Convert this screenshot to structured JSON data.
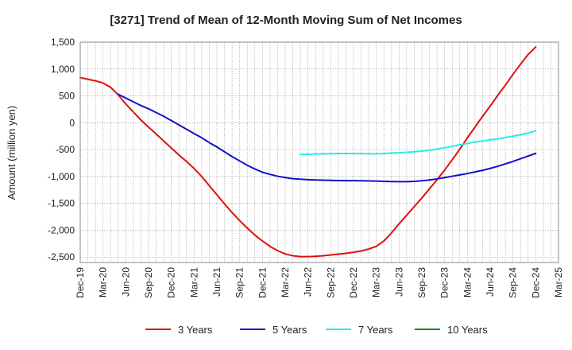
{
  "chart_data": {
    "type": "line",
    "title": "[3271]  Trend of Mean of 12-Month Moving Sum of Net Incomes",
    "ylabel": "Amount (million yen)",
    "xlabel": "",
    "ylim": [
      -2600,
      1500
    ],
    "yticks": [
      1500,
      1000,
      500,
      0,
      -500,
      -1000,
      -1500,
      -2000,
      -2500
    ],
    "ytick_labels": [
      "1,500",
      "1,000",
      "500",
      "0",
      "-500",
      "-1,000",
      "-1,500",
      "-2,000",
      "-2,500"
    ],
    "x_range": [
      "2019-12",
      "2025-03"
    ],
    "xtick_labels": [
      "Dec-19",
      "Mar-20",
      "Jun-20",
      "Sep-20",
      "Dec-20",
      "Mar-21",
      "Jun-21",
      "Sep-21",
      "Dec-21",
      "Mar-22",
      "Jun-22",
      "Sep-22",
      "Dec-22",
      "Mar-23",
      "Jun-23",
      "Sep-23",
      "Dec-23",
      "Mar-24",
      "Jun-24",
      "Sep-24",
      "Dec-24",
      "Mar-25"
    ],
    "grid": true,
    "legend_position": "bottom",
    "series": [
      {
        "name": "3 Years",
        "color": "#dd1111",
        "points": [
          [
            "2019-12",
            840
          ],
          [
            "2020-01",
            810
          ],
          [
            "2020-02",
            780
          ],
          [
            "2020-03",
            740
          ],
          [
            "2020-04",
            660
          ],
          [
            "2020-05",
            520
          ],
          [
            "2020-06",
            350
          ],
          [
            "2020-07",
            200
          ],
          [
            "2020-08",
            50
          ],
          [
            "2020-09",
            -80
          ],
          [
            "2020-10",
            -210
          ],
          [
            "2020-11",
            -340
          ],
          [
            "2020-12",
            -470
          ],
          [
            "2021-01",
            -600
          ],
          [
            "2021-02",
            -720
          ],
          [
            "2021-03",
            -850
          ],
          [
            "2021-04",
            -1000
          ],
          [
            "2021-05",
            -1170
          ],
          [
            "2021-06",
            -1340
          ],
          [
            "2021-07",
            -1510
          ],
          [
            "2021-08",
            -1670
          ],
          [
            "2021-09",
            -1820
          ],
          [
            "2021-10",
            -1960
          ],
          [
            "2021-11",
            -2090
          ],
          [
            "2021-12",
            -2200
          ],
          [
            "2022-01",
            -2300
          ],
          [
            "2022-02",
            -2380
          ],
          [
            "2022-03",
            -2440
          ],
          [
            "2022-04",
            -2475
          ],
          [
            "2022-05",
            -2490
          ],
          [
            "2022-06",
            -2490
          ],
          [
            "2022-07",
            -2485
          ],
          [
            "2022-08",
            -2475
          ],
          [
            "2022-09",
            -2460
          ],
          [
            "2022-10",
            -2445
          ],
          [
            "2022-11",
            -2430
          ],
          [
            "2022-12",
            -2410
          ],
          [
            "2023-01",
            -2385
          ],
          [
            "2023-02",
            -2350
          ],
          [
            "2023-03",
            -2300
          ],
          [
            "2023-04",
            -2200
          ],
          [
            "2023-05",
            -2050
          ],
          [
            "2023-06",
            -1880
          ],
          [
            "2023-07",
            -1720
          ],
          [
            "2023-08",
            -1560
          ],
          [
            "2023-09",
            -1400
          ],
          [
            "2023-10",
            -1230
          ],
          [
            "2023-11",
            -1060
          ],
          [
            "2023-12",
            -880
          ],
          [
            "2024-01",
            -690
          ],
          [
            "2024-02",
            -490
          ],
          [
            "2024-03",
            -280
          ],
          [
            "2024-04",
            -80
          ],
          [
            "2024-05",
            120
          ],
          [
            "2024-06",
            310
          ],
          [
            "2024-07",
            510
          ],
          [
            "2024-08",
            700
          ],
          [
            "2024-09",
            900
          ],
          [
            "2024-10",
            1090
          ],
          [
            "2024-11",
            1270
          ],
          [
            "2024-12",
            1410
          ]
        ]
      },
      {
        "name": "5 Years",
        "color": "#1111cc",
        "points": [
          [
            "2020-05",
            530
          ],
          [
            "2020-06",
            460
          ],
          [
            "2020-07",
            390
          ],
          [
            "2020-08",
            320
          ],
          [
            "2020-09",
            260
          ],
          [
            "2020-10",
            190
          ],
          [
            "2020-11",
            120
          ],
          [
            "2020-12",
            40
          ],
          [
            "2021-01",
            -40
          ],
          [
            "2021-02",
            -120
          ],
          [
            "2021-03",
            -200
          ],
          [
            "2021-04",
            -280
          ],
          [
            "2021-05",
            -370
          ],
          [
            "2021-06",
            -450
          ],
          [
            "2021-07",
            -540
          ],
          [
            "2021-08",
            -630
          ],
          [
            "2021-09",
            -710
          ],
          [
            "2021-10",
            -790
          ],
          [
            "2021-11",
            -860
          ],
          [
            "2021-12",
            -920
          ],
          [
            "2022-01",
            -960
          ],
          [
            "2022-02",
            -995
          ],
          [
            "2022-03",
            -1020
          ],
          [
            "2022-04",
            -1040
          ],
          [
            "2022-05",
            -1050
          ],
          [
            "2022-06",
            -1058
          ],
          [
            "2022-07",
            -1064
          ],
          [
            "2022-08",
            -1068
          ],
          [
            "2022-09",
            -1072
          ],
          [
            "2022-10",
            -1075
          ],
          [
            "2022-11",
            -1077
          ],
          [
            "2022-12",
            -1078
          ],
          [
            "2023-01",
            -1080
          ],
          [
            "2023-02",
            -1082
          ],
          [
            "2023-03",
            -1085
          ],
          [
            "2023-04",
            -1090
          ],
          [
            "2023-05",
            -1093
          ],
          [
            "2023-06",
            -1095
          ],
          [
            "2023-07",
            -1095
          ],
          [
            "2023-08",
            -1090
          ],
          [
            "2023-09",
            -1080
          ],
          [
            "2023-10",
            -1065
          ],
          [
            "2023-11",
            -1045
          ],
          [
            "2023-12",
            -1020
          ],
          [
            "2024-01",
            -995
          ],
          [
            "2024-02",
            -970
          ],
          [
            "2024-03",
            -945
          ],
          [
            "2024-04",
            -915
          ],
          [
            "2024-05",
            -885
          ],
          [
            "2024-06",
            -850
          ],
          [
            "2024-07",
            -810
          ],
          [
            "2024-08",
            -765
          ],
          [
            "2024-09",
            -720
          ],
          [
            "2024-10",
            -670
          ],
          [
            "2024-11",
            -620
          ],
          [
            "2024-12",
            -570
          ]
        ]
      },
      {
        "name": "7 Years",
        "color": "#22eeee",
        "points": [
          [
            "2022-05",
            -590
          ],
          [
            "2022-06",
            -585
          ],
          [
            "2022-07",
            -582
          ],
          [
            "2022-08",
            -578
          ],
          [
            "2022-09",
            -575
          ],
          [
            "2022-10",
            -573
          ],
          [
            "2022-11",
            -572
          ],
          [
            "2022-12",
            -572
          ],
          [
            "2023-01",
            -574
          ],
          [
            "2023-02",
            -576
          ],
          [
            "2023-03",
            -577
          ],
          [
            "2023-04",
            -572
          ],
          [
            "2023-05",
            -565
          ],
          [
            "2023-06",
            -558
          ],
          [
            "2023-07",
            -550
          ],
          [
            "2023-08",
            -540
          ],
          [
            "2023-09",
            -528
          ],
          [
            "2023-10",
            -510
          ],
          [
            "2023-11",
            -490
          ],
          [
            "2023-12",
            -465
          ],
          [
            "2024-01",
            -438
          ],
          [
            "2024-02",
            -410
          ],
          [
            "2024-03",
            -385
          ],
          [
            "2024-04",
            -360
          ],
          [
            "2024-05",
            -338
          ],
          [
            "2024-06",
            -318
          ],
          [
            "2024-07",
            -298
          ],
          [
            "2024-08",
            -275
          ],
          [
            "2024-09",
            -250
          ],
          [
            "2024-10",
            -222
          ],
          [
            "2024-11",
            -190
          ],
          [
            "2024-12",
            -150
          ]
        ]
      },
      {
        "name": "10 Years",
        "color": "#118811",
        "points": []
      }
    ]
  }
}
